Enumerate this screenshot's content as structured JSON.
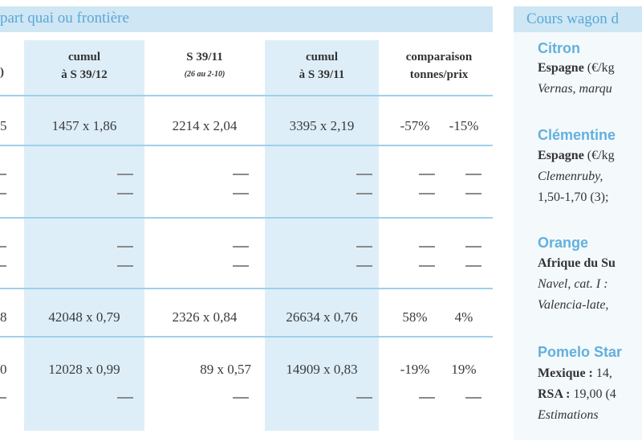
{
  "table": {
    "title": "part quai ou frontière",
    "partial_head": ")",
    "columns": [
      {
        "line1": "cumul",
        "line2": "à S 39/12",
        "sub": ""
      },
      {
        "line1": "S 39/11",
        "line2": "",
        "sub": "(26 au 2-10)"
      },
      {
        "line1": "cumul",
        "line2": "à S 39/11",
        "sub": ""
      },
      {
        "line1": "comparaison",
        "line2": "tonnes/prix",
        "sub": ""
      }
    ],
    "rows": [
      {
        "partial": "5",
        "c1": "1457 x 1,86",
        "c2": "2214 x 2,04",
        "c3": "3395 x 2,19",
        "c4a": "-57%",
        "c4b": "-15%"
      },
      {
        "partial": "8",
        "c1": "42048 x 0,79",
        "c2": "2326 x 0,84",
        "c3": "26634 x 0,76",
        "c4a": "58%",
        "c4b": "4%"
      },
      {
        "partial": "0",
        "c1": "12028 x 0,99",
        "c2": "89 x 0,57",
        "c3": "14909 x 0,83",
        "c4a": "-19%",
        "c4b": "19%"
      }
    ]
  },
  "side": {
    "title": "Cours wagon d",
    "sections": [
      {
        "name": "Citron",
        "lines": [
          {
            "bold": "Espagne",
            "text": " (€/kg"
          },
          {
            "italic": "Vernas, marqu"
          }
        ]
      },
      {
        "name": "Clémentine",
        "lines": [
          {
            "bold": "Espagne",
            "text": " (€/kg"
          },
          {
            "italic": "Clemenruby, "
          },
          {
            "text": "1,50-1,70 (3);"
          }
        ]
      },
      {
        "name": "Orange",
        "lines": [
          {
            "bold": "Afrique du Su"
          },
          {
            "italic": "Navel, cat. I : "
          },
          {
            "italic": "Valencia-late, "
          }
        ]
      },
      {
        "name": "Pomelo Star",
        "lines": [
          {
            "bold": "Mexique :",
            "text": " 14,"
          },
          {
            "bold": "RSA :",
            "text": " 19,00 (4"
          },
          {
            "italic": "Estimations"
          }
        ]
      }
    ]
  }
}
